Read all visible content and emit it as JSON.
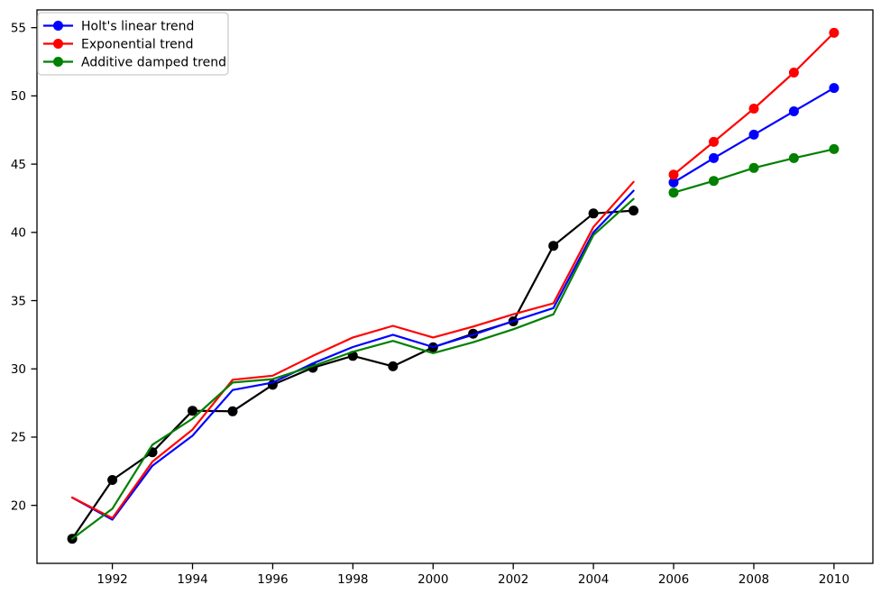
{
  "figure": {
    "background": "#ffffff",
    "plot_background": "#ffffff",
    "spine_color": "#000000"
  },
  "chart_data": {
    "type": "line",
    "title": "",
    "xlabel": "",
    "ylabel": "",
    "grid": false,
    "xlim": [
      1990.12,
      2010.97
    ],
    "ylim": [
      15.75,
      56.3
    ],
    "x_ticks": [
      1992,
      1994,
      1996,
      1998,
      2000,
      2002,
      2004,
      2006,
      2008,
      2010
    ],
    "x_tick_labels": [
      "1992",
      "1994",
      "1996",
      "1998",
      "2000",
      "2002",
      "2004",
      "2006",
      "2008",
      "2010"
    ],
    "y_ticks": [
      20,
      25,
      30,
      35,
      40,
      45,
      50,
      55
    ],
    "y_tick_labels": [
      "20",
      "25",
      "30",
      "35",
      "40",
      "45",
      "50",
      "55"
    ],
    "legend": {
      "position": "upper-left",
      "entries": [
        {
          "label": "Holt's linear trend",
          "color": "#0000ff",
          "marker": "circle"
        },
        {
          "label": "Exponential trend",
          "color": "#ff0000",
          "marker": "circle"
        },
        {
          "label": "Additive damped trend",
          "color": "#008000",
          "marker": "circle"
        }
      ]
    },
    "series": [
      {
        "name": "observed",
        "color": "#000000",
        "markers": true,
        "x": [
          1991,
          1992,
          1993,
          1994,
          1995,
          1996,
          1997,
          1998,
          1999,
          2000,
          2001,
          2002,
          2003,
          2004,
          2005
        ],
        "y": [
          17.55,
          21.86,
          23.89,
          26.93,
          26.89,
          28.83,
          30.08,
          30.95,
          30.19,
          31.58,
          32.58,
          33.48,
          39.02,
          41.39,
          41.6
        ]
      },
      {
        "name": "holt-linear-fitted",
        "color": "#0000ff",
        "markers": false,
        "x": [
          1991,
          1992,
          1993,
          1994,
          1995,
          1996,
          1997,
          1998,
          1999,
          2000,
          2001,
          2002,
          2003,
          2004,
          2005
        ],
        "y": [
          20.57,
          18.95,
          22.9,
          25.1,
          28.45,
          29.0,
          30.4,
          31.6,
          32.5,
          31.6,
          32.5,
          33.5,
          34.45,
          40.0,
          43.05
        ]
      },
      {
        "name": "exponential-fitted",
        "color": "#ff0000",
        "markers": false,
        "x": [
          1991,
          1992,
          1993,
          1994,
          1995,
          1996,
          1997,
          1998,
          1999,
          2000,
          2001,
          2002,
          2003,
          2004,
          2005
        ],
        "y": [
          20.57,
          19.06,
          23.2,
          25.55,
          29.2,
          29.5,
          30.95,
          32.3,
          33.15,
          32.3,
          33.1,
          34.0,
          34.8,
          40.4,
          43.7
        ]
      },
      {
        "name": "additive-damped-fitted",
        "color": "#008000",
        "markers": false,
        "x": [
          1991,
          1992,
          1993,
          1994,
          1995,
          1996,
          1997,
          1998,
          1999,
          2000,
          2001,
          2002,
          2003,
          2004,
          2005
        ],
        "y": [
          17.55,
          19.75,
          24.44,
          26.35,
          29.0,
          29.25,
          30.2,
          31.25,
          32.05,
          31.15,
          31.95,
          32.9,
          34.0,
          39.8,
          42.45
        ]
      },
      {
        "name": "holt-linear-forecast",
        "color": "#0000ff",
        "markers": true,
        "x": [
          2006,
          2007,
          2008,
          2009,
          2010
        ],
        "y": [
          43.66,
          45.44,
          47.16,
          48.87,
          50.58
        ]
      },
      {
        "name": "exponential-forecast",
        "color": "#ff0000",
        "markers": true,
        "x": [
          2006,
          2007,
          2008,
          2009,
          2010
        ],
        "y": [
          44.23,
          46.63,
          49.07,
          51.71,
          54.62
        ]
      },
      {
        "name": "additive-damped-forecast",
        "color": "#008000",
        "markers": true,
        "x": [
          2006,
          2007,
          2008,
          2009,
          2010
        ],
        "y": [
          42.91,
          43.77,
          44.72,
          45.44,
          46.1
        ]
      }
    ]
  }
}
